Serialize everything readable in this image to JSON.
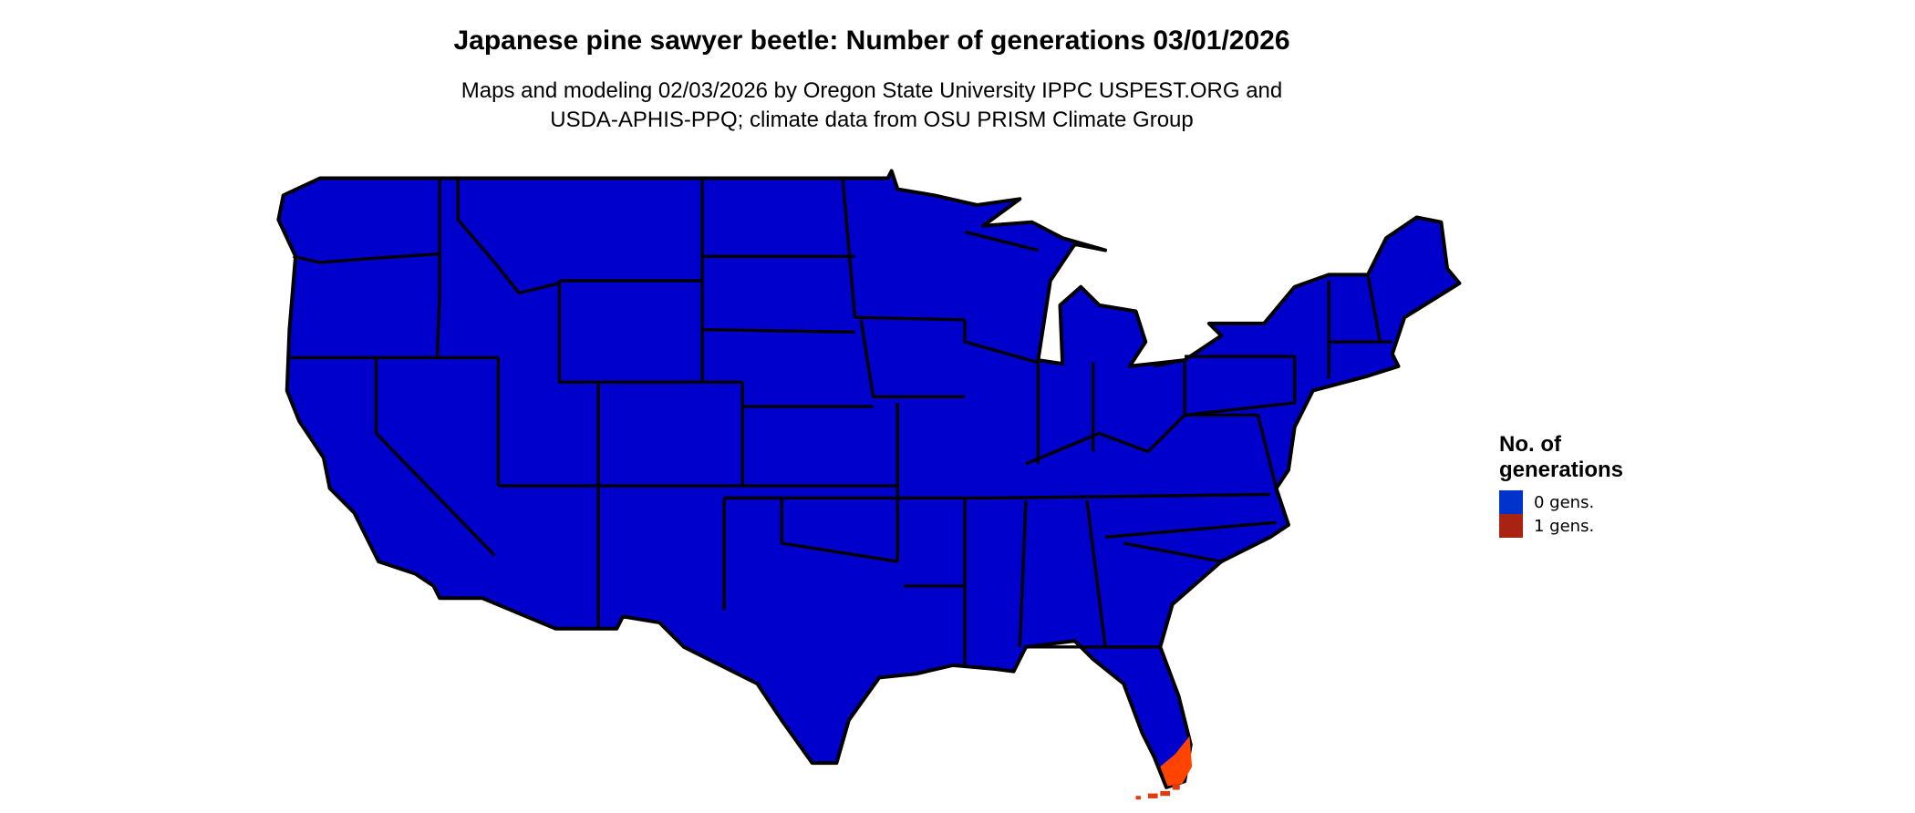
{
  "title": "Japanese pine sawyer beetle: Number of generations 03/01/2026",
  "subtitle_line1": "Maps and modeling 02/03/2026 by Oregon State University IPPC USPEST.ORG and",
  "subtitle_line2": "USDA-APHIS-PPQ; climate data from OSU PRISM Climate Group",
  "legend": {
    "title_line1": "No. of",
    "title_line2": "generations",
    "items": [
      {
        "label": "0 gens.",
        "color": "#0033cc"
      },
      {
        "label": "1 gens.",
        "color": "#aa2211"
      }
    ]
  },
  "map_colors": {
    "zero_generations_fill": "#0000cc",
    "one_generation_fill": "#ff4400",
    "borders": "#000000"
  }
}
